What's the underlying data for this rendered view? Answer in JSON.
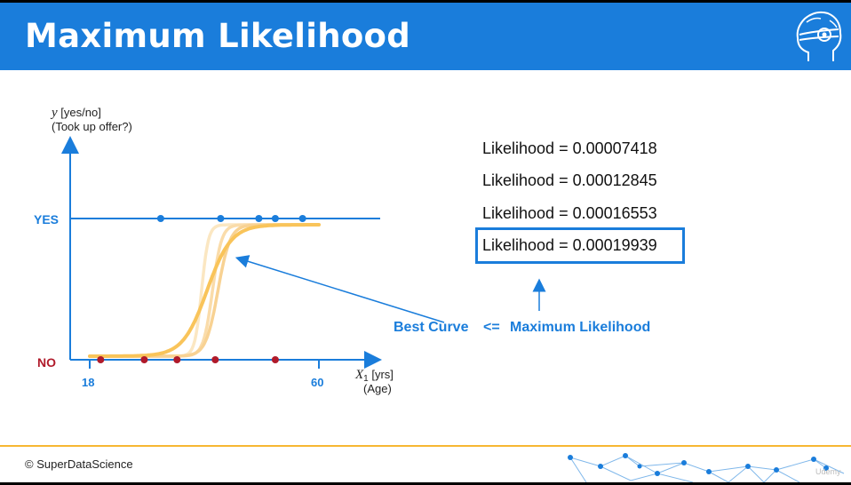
{
  "header": {
    "title": "Maximum Likelihood"
  },
  "chart": {
    "y_label_var": "y",
    "y_label_units": " [yes/no]",
    "y_label_question": "(Took up offer?)",
    "yes_label": "YES",
    "no_label": "NO",
    "x_min_label": "18",
    "x_max_label": "60",
    "x_label_var": "X",
    "x_label_sub": "1",
    "x_label_units": " [yrs]",
    "x_label_desc": "(Age)"
  },
  "chart_data": {
    "type": "scatter",
    "xlim": [
      18,
      60
    ],
    "points_yes": [
      31,
      42,
      49,
      52,
      57
    ],
    "points_no": [
      20,
      28,
      34,
      41,
      52
    ],
    "curves": [
      {
        "role": "candidate",
        "midpoint": 38.5,
        "steepness": 1.6,
        "color": "#fbe7c2"
      },
      {
        "role": "candidate",
        "midpoint": 40.5,
        "steepness": 1.2,
        "color": "#fadcaa"
      },
      {
        "role": "candidate",
        "midpoint": 41.5,
        "steepness": 0.9,
        "color": "#f8d293"
      },
      {
        "role": "best",
        "midpoint": 39.5,
        "steepness": 0.45,
        "color": "#f9c45a"
      }
    ]
  },
  "likelihoods": [
    {
      "text": "Likelihood = 0.00007418"
    },
    {
      "text": "Likelihood = 0.00012845"
    },
    {
      "text": "Likelihood = 0.00016553"
    },
    {
      "text": "Likelihood = 0.00019939"
    }
  ],
  "annotation": {
    "best_curve": "Best Curve",
    "arrow_symbol": "<=",
    "max_likelihood": "Maximum Likelihood"
  },
  "footer": {
    "copyright": "© SuperDataScience",
    "watermark": "Udemy"
  },
  "colors": {
    "header_bg": "#1a7ddb",
    "accent_blue": "#1a7ddb",
    "no_red": "#b01a2a",
    "footer_line": "#f7b733"
  }
}
